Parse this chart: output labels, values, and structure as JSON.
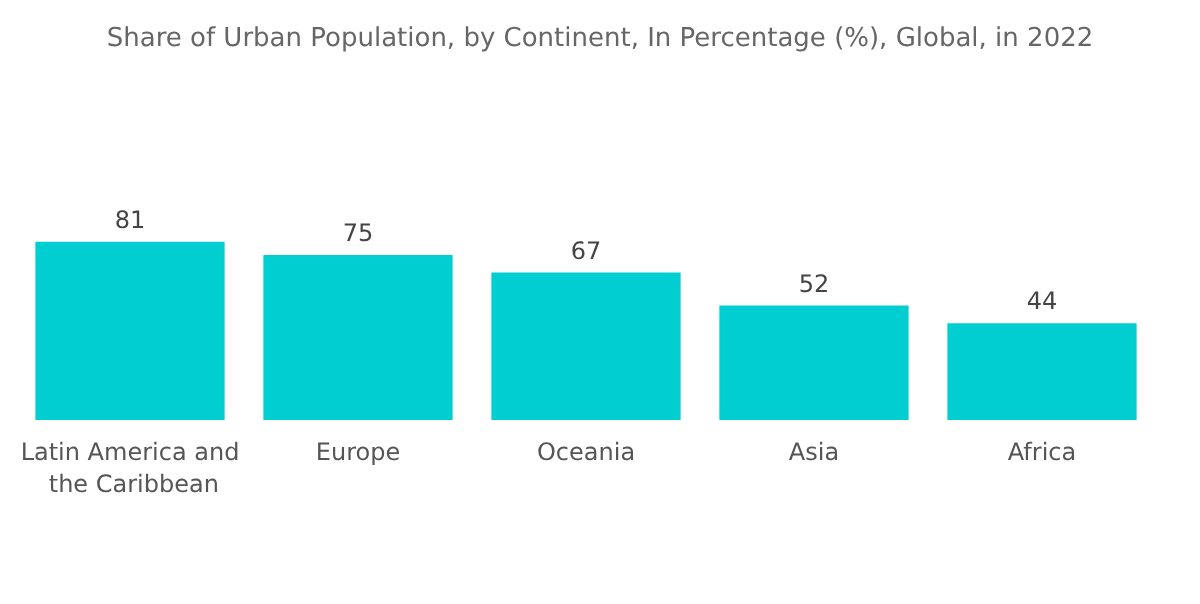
{
  "chart_data": {
    "type": "bar",
    "title": "Share of Urban Population, by Continent, In Percentage (%), Global, in 2022",
    "categories": [
      "Latin America and the Caribbean",
      "Europe",
      "Oceania",
      "Asia",
      "Africa"
    ],
    "values": [
      81,
      75,
      67,
      52,
      44
    ],
    "color": "#00ced1",
    "data_labels": true
  }
}
